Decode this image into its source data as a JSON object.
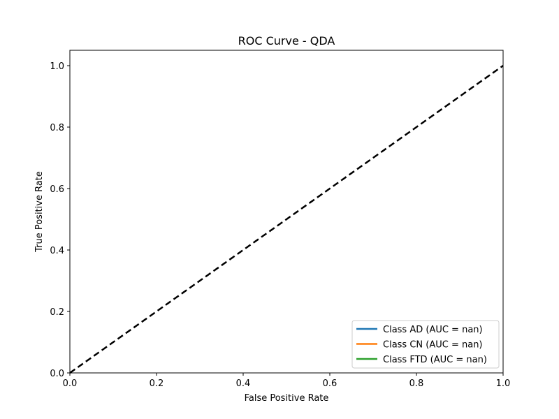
{
  "chart_data": {
    "type": "line",
    "title": "ROC Curve - QDA",
    "xlabel": "False Positive Rate",
    "ylabel": "True Positive Rate",
    "xlim": [
      0.0,
      1.0
    ],
    "ylim": [
      0.0,
      1.05
    ],
    "xticks": [
      "0.0",
      "0.2",
      "0.4",
      "0.6",
      "0.8",
      "1.0"
    ],
    "yticks": [
      "0.0",
      "0.2",
      "0.4",
      "0.6",
      "0.8",
      "1.0"
    ],
    "grid": false,
    "legend_position": "lower-right",
    "series": [
      {
        "name": "Class AD (AUC = nan)",
        "color": "#1f77b4",
        "x": [],
        "y": []
      },
      {
        "name": "Class CN (AUC = nan)",
        "color": "#ff7f0e",
        "x": [],
        "y": []
      },
      {
        "name": "Class FTD (AUC = nan)",
        "color": "#2ca02c",
        "x": [],
        "y": []
      }
    ],
    "reference_line": {
      "x": [
        0,
        1
      ],
      "y": [
        0,
        1
      ],
      "color": "#000000",
      "style": "dashed"
    }
  }
}
